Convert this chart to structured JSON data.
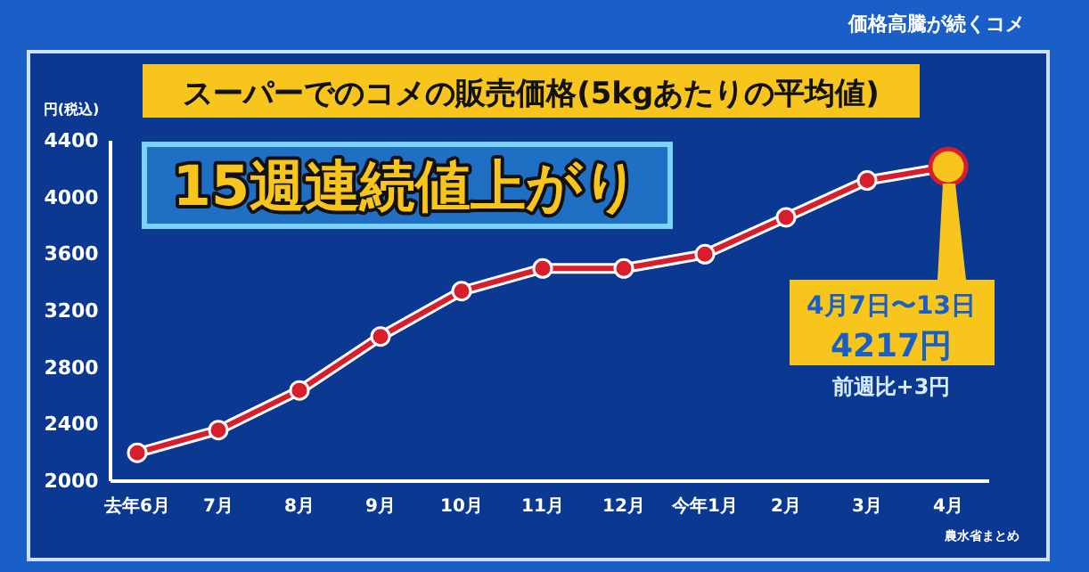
{
  "chart_data": {
    "type": "line",
    "title": "スーパーでのコメの販売価格(5kgあたりの平均値)",
    "subtitle": "15週連続値上がり",
    "ylabel": "円(税込)",
    "categories": [
      "去年6月",
      "7月",
      "8月",
      "9月",
      "10月",
      "11月",
      "12月",
      "今年1月",
      "2月",
      "3月",
      "4月"
    ],
    "series": [
      {
        "color": "#d81e2a",
        "colors": [
          "#d81e2a",
          "#d81e2a",
          "#d81e2a",
          "#d81e2a",
          "#d81e2a",
          "#d81e2a",
          "#d81e2a",
          "#d81e2a",
          "#d81e2a",
          "#d81e2a",
          "#f7c51b"
        ],
        "values": [
          2200,
          2360,
          2640,
          3020,
          3340,
          3500,
          3500,
          3600,
          3860,
          4120,
          4217
        ]
      }
    ],
    "ylim": [
      2000,
      4400
    ],
    "yticks": [
      2000,
      2400,
      2800,
      3200,
      3600,
      4000,
      4400
    ],
    "grid": false,
    "marker": "circle",
    "line_style": "solid",
    "annotations": [
      "価格高騰が続くコメ",
      "4月7日〜13日",
      "4217円",
      "前週比+3円",
      "農水省まとめ"
    ]
  }
}
